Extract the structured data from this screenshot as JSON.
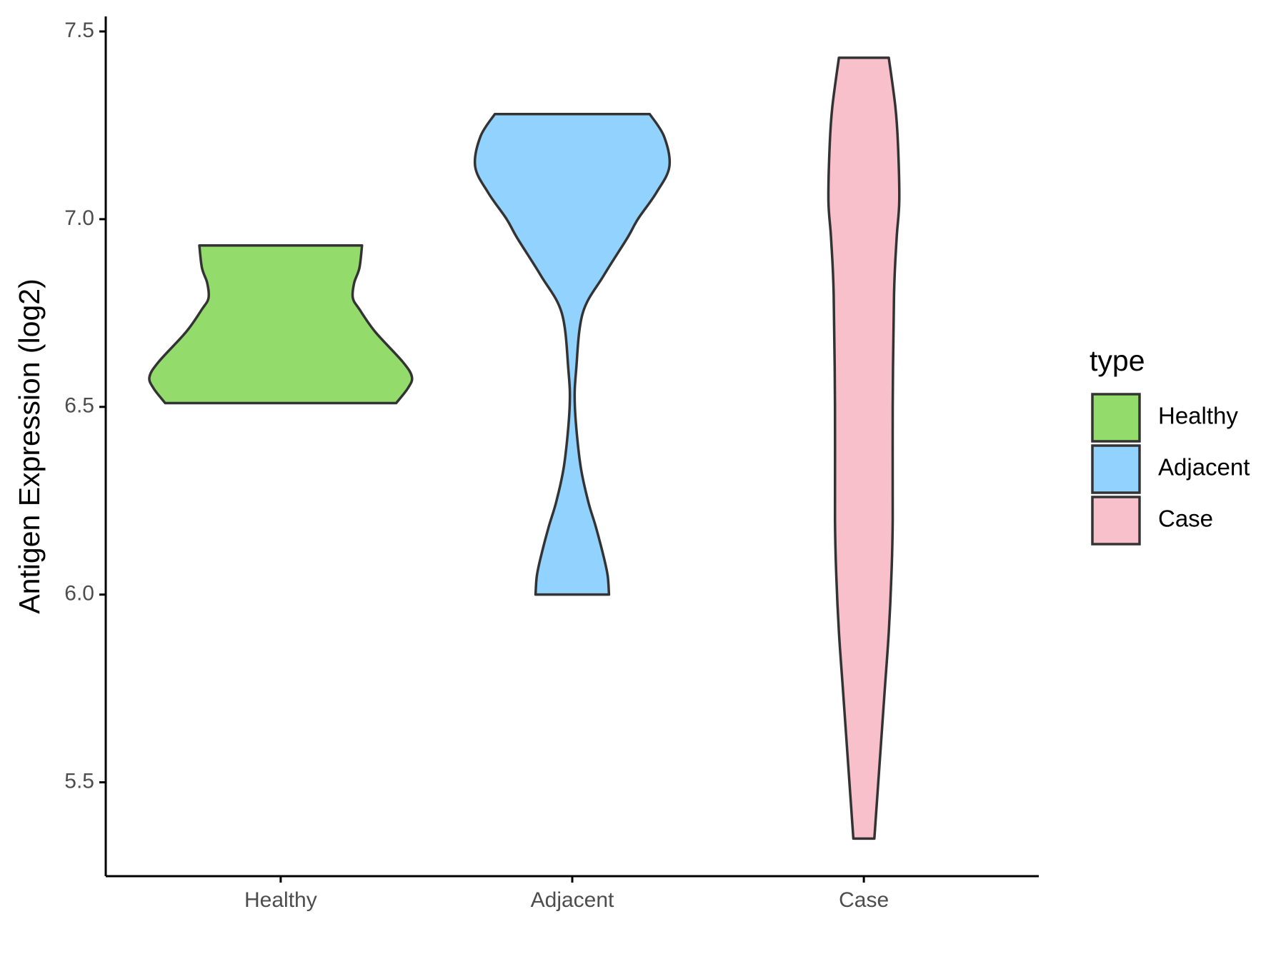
{
  "chart_data": {
    "type": "violin",
    "y_label": "Antigen Expression (log2)",
    "legend_title": "type",
    "legend_position": "right",
    "categories": [
      "Healthy",
      "Adjacent",
      "Case"
    ],
    "ylim": [
      5.25,
      7.54
    ],
    "yticks": [
      5.5,
      {
        "value": 6,
        "label": "6.0"
      },
      6.5,
      {
        "value": 7,
        "label": "7.0"
      },
      7.5
    ],
    "series": [
      {
        "name": "Healthy",
        "color": "#93db6b",
        "values": [
          6.51,
          6.55,
          6.58,
          6.62,
          6.7,
          6.76,
          6.79,
          6.83,
          6.87,
          6.93
        ],
        "density": [
          0.88,
          0.97,
          1.0,
          0.93,
          0.72,
          0.6,
          0.55,
          0.56,
          0.6,
          0.62
        ]
      },
      {
        "name": "Adjacent",
        "color": "#92d2ff",
        "values": [
          6.0,
          6.05,
          6.1,
          6.18,
          6.25,
          6.35,
          6.5,
          6.6,
          6.75,
          6.85,
          6.95,
          7.0,
          7.07,
          7.14,
          7.22,
          7.28
        ],
        "density": [
          0.28,
          0.27,
          0.24,
          0.18,
          0.12,
          0.06,
          0.02,
          0.03,
          0.08,
          0.24,
          0.42,
          0.5,
          0.64,
          0.74,
          0.7,
          0.59
        ]
      },
      {
        "name": "Case",
        "color": "#f7c0cb",
        "values": [
          5.35,
          5.45,
          5.6,
          5.75,
          5.9,
          6.05,
          6.2,
          6.5,
          6.8,
          6.95,
          7.05,
          7.2,
          7.3,
          7.43
        ],
        "density": [
          0.08,
          0.1,
          0.13,
          0.16,
          0.19,
          0.21,
          0.22,
          0.22,
          0.23,
          0.25,
          0.27,
          0.26,
          0.24,
          0.19
        ]
      }
    ]
  }
}
